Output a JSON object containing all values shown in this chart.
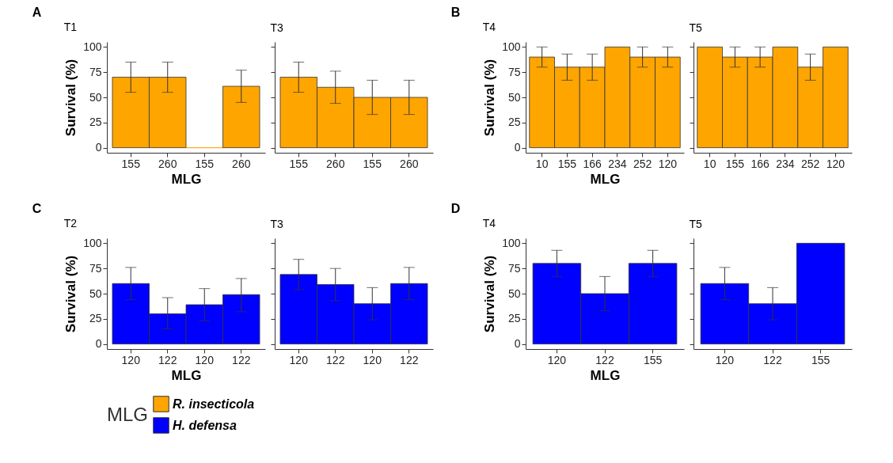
{
  "chart_data": [
    {
      "type": "bar",
      "title": "T1",
      "annotations": [
        "A"
      ],
      "xlabel": "MLG",
      "ylabel": "Survival (%)",
      "legend": "bottom",
      "legend_title": "MLG",
      "categories": [
        "155",
        "260",
        "155",
        "260"
      ],
      "ylim": [
        -5,
        105
      ],
      "yticks": [
        0,
        25,
        50,
        75,
        100
      ],
      "series": [
        {
          "name": "R. insecticola",
          "color": "#ffa500",
          "values": [
            70,
            70,
            0,
            61
          ],
          "errors": [
            [
              55,
              85
            ],
            [
              55,
              85
            ],
            null,
            [
              45,
              77
            ]
          ]
        }
      ]
    },
    {
      "type": "bar",
      "title": "T3",
      "tick_labels": "x",
      "categories": [
        "155",
        "260",
        "155",
        "260"
      ],
      "ylim": [
        -5,
        105
      ],
      "yticks": [
        0,
        25,
        50,
        75,
        100
      ],
      "series": [
        {
          "color": "#ffa500",
          "values": [
            70,
            60,
            50,
            50
          ],
          "errors": [
            [
              55,
              85
            ],
            [
              44,
              76
            ],
            [
              33,
              67
            ],
            [
              33,
              67
            ]
          ]
        }
      ]
    },
    {
      "type": "bar",
      "title": "T4",
      "annotations": [
        "B"
      ],
      "xlabel": "MLG",
      "ylabel": "Survival (%)",
      "categories": [
        "10",
        "155",
        "166",
        "234",
        "252",
        "120"
      ],
      "ylim": [
        -5,
        105
      ],
      "yticks": [
        0,
        25,
        50,
        75,
        100
      ],
      "series": [
        {
          "color": "#ffa500",
          "values": [
            90,
            80,
            80,
            100,
            90,
            90
          ],
          "errors": [
            [
              80,
              100
            ],
            [
              67,
              93
            ],
            [
              67,
              93
            ],
            null,
            [
              80,
              100
            ],
            [
              80,
              100
            ]
          ]
        }
      ]
    },
    {
      "type": "bar",
      "title": "T5",
      "tick_labels": "x",
      "categories": [
        "10",
        "155",
        "166",
        "234",
        "252",
        "120"
      ],
      "ylim": [
        -5,
        105
      ],
      "yticks": [
        0,
        25,
        50,
        75,
        100
      ],
      "series": [
        {
          "color": "#ffa500",
          "values": [
            100,
            90,
            90,
            100,
            80,
            100
          ],
          "errors": [
            null,
            [
              80,
              100
            ],
            [
              80,
              100
            ],
            null,
            [
              67,
              93
            ],
            null
          ]
        }
      ]
    },
    {
      "type": "bar",
      "title": "T2",
      "annotations": [
        "C"
      ],
      "xlabel": "MLG",
      "ylabel": "Survival (%)",
      "legend": "bottom",
      "categories": [
        "120",
        "122",
        "120",
        "122"
      ],
      "ylim": [
        -5,
        105
      ],
      "yticks": [
        0,
        25,
        50,
        75,
        100
      ],
      "series": [
        {
          "name": "H. defensa",
          "color": "#0000ff",
          "values": [
            60,
            30,
            39,
            49
          ],
          "errors": [
            [
              44,
              76
            ],
            [
              15,
              46
            ],
            [
              23,
              55
            ],
            [
              32,
              65
            ]
          ]
        }
      ]
    },
    {
      "type": "bar",
      "title": "T3",
      "tick_labels": "x",
      "categories": [
        "120",
        "122",
        "120",
        "122"
      ],
      "ylim": [
        -5,
        105
      ],
      "yticks": [
        0,
        25,
        50,
        75,
        100
      ],
      "series": [
        {
          "color": "#0000ff",
          "values": [
            69,
            59,
            40,
            60
          ],
          "errors": [
            [
              54,
              84
            ],
            [
              43,
              75
            ],
            [
              24,
              56
            ],
            [
              44,
              76
            ]
          ]
        }
      ]
    },
    {
      "type": "bar",
      "title": "T4",
      "annotations": [
        "D"
      ],
      "xlabel": "MLG",
      "ylabel": "Survival (%)",
      "categories": [
        "120",
        "122",
        "155"
      ],
      "ylim": [
        -5,
        105
      ],
      "yticks": [
        0,
        25,
        50,
        75,
        100
      ],
      "series": [
        {
          "color": "#0000ff",
          "values": [
            80,
            50,
            80
          ],
          "errors": [
            [
              67,
              93
            ],
            [
              33,
              67
            ],
            [
              67,
              93
            ]
          ]
        }
      ]
    },
    {
      "type": "bar",
      "title": "T5",
      "tick_labels": "x",
      "categories": [
        "120",
        "122",
        "155"
      ],
      "ylim": [
        -5,
        105
      ],
      "yticks": [
        0,
        25,
        50,
        75,
        100
      ],
      "series": [
        {
          "color": "#0000ff",
          "values": [
            60,
            40,
            100
          ],
          "errors": [
            [
              44,
              76
            ],
            [
              24,
              56
            ],
            null
          ]
        }
      ]
    }
  ]
}
